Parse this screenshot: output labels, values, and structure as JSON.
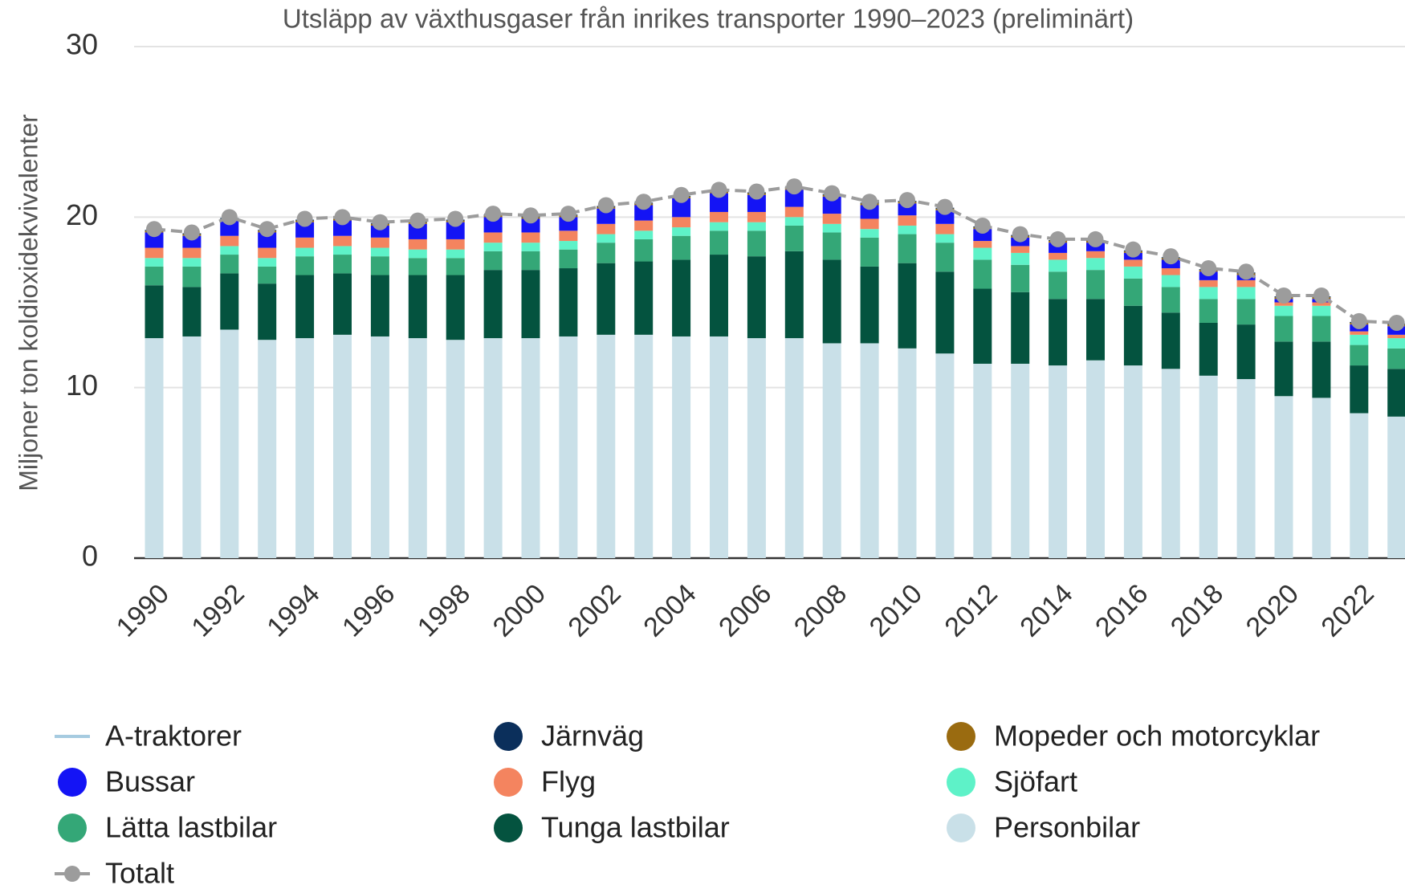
{
  "chart_data": {
    "type": "bar",
    "stacked": true,
    "title": "Utsläpp av växthusgaser från inrikes transporter 1990–2023 (preliminärt)",
    "y_label": "Miljoner ton koldioxidekvivalenter",
    "categories": [
      "1990",
      null,
      "1992",
      null,
      "1994",
      null,
      "1996",
      null,
      "1998",
      null,
      "2000",
      null,
      "2002",
      null,
      "2004",
      null,
      "2006",
      null,
      "2008",
      null,
      "2010",
      null,
      "2012",
      null,
      "2014",
      null,
      "2016",
      null,
      "2018",
      null,
      "2020",
      null,
      "2022",
      null
    ],
    "ylim": [
      0,
      30
    ],
    "yticks": [
      0,
      10,
      20,
      30
    ],
    "grid": true,
    "series": [
      {
        "name": "A-traktorer",
        "type": "line",
        "color": "#a6cbe0",
        "values": [
          null,
          null,
          null,
          null,
          null,
          null,
          null,
          null,
          null,
          null,
          null,
          null,
          null,
          null,
          null,
          null,
          null,
          null,
          null,
          null,
          null,
          null,
          null,
          null,
          null,
          null,
          null,
          null,
          null,
          null,
          null,
          null,
          null,
          null
        ]
      },
      {
        "name": "Järnväg",
        "type": "bar",
        "color": "#0b2f5b",
        "values": [
          0.05,
          0.05,
          0.05,
          0.05,
          0.05,
          0.05,
          0.05,
          0.05,
          0.05,
          0.05,
          0.05,
          0.05,
          0.05,
          0.05,
          0.05,
          0.05,
          0.05,
          0.05,
          0.05,
          0.05,
          0.05,
          0.05,
          0.05,
          0.05,
          0.05,
          0.05,
          0.05,
          0.05,
          0.05,
          0.05,
          0.05,
          0.05,
          0.05,
          0.05
        ]
      },
      {
        "name": "Mopeder och motorcyklar",
        "type": "bar",
        "color": "#9a6b10",
        "values": [
          0.1,
          0.1,
          0.1,
          0.1,
          0.1,
          0.1,
          0.1,
          0.1,
          0.1,
          0.1,
          0.1,
          0.1,
          0.1,
          0.1,
          0.1,
          0.1,
          0.1,
          0.1,
          0.1,
          0.1,
          0.1,
          0.1,
          0.1,
          0.1,
          0.1,
          0.1,
          0.1,
          0.1,
          0.1,
          0.1,
          0.1,
          0.1,
          0.1,
          0.1
        ]
      },
      {
        "name": "Bussar",
        "type": "bar",
        "color": "#1414f5",
        "values": [
          0.9,
          0.7,
          0.9,
          0.9,
          0.9,
          0.9,
          0.7,
          0.9,
          1.0,
          0.9,
          0.8,
          0.8,
          0.9,
          0.9,
          1.1,
          1.1,
          1.0,
          1.0,
          1.0,
          0.8,
          0.7,
          0.8,
          0.7,
          0.5,
          0.6,
          0.5,
          0.4,
          0.5,
          0.5,
          0.3,
          0.2,
          0.2,
          0.4,
          0.5
        ]
      },
      {
        "name": "Flyg",
        "type": "bar",
        "color": "#f4845f",
        "values": [
          0.6,
          0.6,
          0.6,
          0.6,
          0.6,
          0.6,
          0.6,
          0.6,
          0.6,
          0.6,
          0.6,
          0.6,
          0.6,
          0.6,
          0.6,
          0.6,
          0.6,
          0.6,
          0.6,
          0.6,
          0.6,
          0.6,
          0.4,
          0.4,
          0.4,
          0.4,
          0.4,
          0.4,
          0.4,
          0.4,
          0.2,
          0.2,
          0.2,
          0.2
        ]
      },
      {
        "name": "Sjöfart",
        "type": "bar",
        "color": "#5ef2c8",
        "values": [
          0.5,
          0.5,
          0.5,
          0.5,
          0.5,
          0.5,
          0.5,
          0.5,
          0.5,
          0.5,
          0.5,
          0.5,
          0.5,
          0.5,
          0.5,
          0.5,
          0.5,
          0.5,
          0.5,
          0.5,
          0.5,
          0.5,
          0.7,
          0.7,
          0.7,
          0.7,
          0.7,
          0.7,
          0.7,
          0.7,
          0.6,
          0.6,
          0.6,
          0.6
        ]
      },
      {
        "name": "Lätta lastbilar",
        "type": "bar",
        "color": "#34a777",
        "values": [
          1.1,
          1.2,
          1.1,
          1.0,
          1.1,
          1.1,
          1.1,
          1.0,
          1.0,
          1.1,
          1.1,
          1.1,
          1.2,
          1.3,
          1.4,
          1.4,
          1.5,
          1.5,
          1.6,
          1.7,
          1.7,
          1.7,
          1.7,
          1.6,
          1.6,
          1.7,
          1.6,
          1.5,
          1.4,
          1.5,
          1.5,
          1.5,
          1.2,
          1.2
        ]
      },
      {
        "name": "Tunga lastbilar",
        "type": "bar",
        "color": "#04533f",
        "values": [
          3.1,
          2.9,
          3.3,
          3.3,
          3.7,
          3.6,
          3.6,
          3.7,
          3.8,
          4.0,
          4.0,
          4.0,
          4.2,
          4.3,
          4.5,
          4.8,
          4.8,
          5.1,
          4.9,
          4.5,
          5.0,
          4.8,
          4.4,
          4.2,
          3.9,
          3.6,
          3.5,
          3.3,
          3.1,
          3.2,
          3.2,
          3.3,
          2.8,
          2.8
        ]
      },
      {
        "name": "Personbilar",
        "type": "bar",
        "color": "#c9e0e8",
        "values": [
          12.9,
          13.0,
          13.4,
          12.8,
          12.9,
          13.1,
          13.0,
          12.9,
          12.8,
          12.9,
          12.9,
          13.0,
          13.1,
          13.1,
          13.0,
          13.0,
          12.9,
          12.9,
          12.6,
          12.6,
          12.3,
          12.0,
          11.4,
          11.4,
          11.3,
          11.6,
          11.3,
          11.1,
          10.7,
          10.5,
          9.5,
          9.4,
          8.5,
          8.3
        ]
      },
      {
        "name": "Totalt",
        "type": "line",
        "marker": true,
        "dashed": true,
        "color": "#9c9c9c",
        "values": [
          19.3,
          19.1,
          20.0,
          19.3,
          19.9,
          20.0,
          19.7,
          19.8,
          19.9,
          20.2,
          20.1,
          20.2,
          20.7,
          20.9,
          21.3,
          21.6,
          21.5,
          21.8,
          21.4,
          20.9,
          21.0,
          20.6,
          19.5,
          19.0,
          18.7,
          18.7,
          18.1,
          17.7,
          17.0,
          16.8,
          15.4,
          15.4,
          13.9,
          13.8
        ]
      }
    ]
  }
}
